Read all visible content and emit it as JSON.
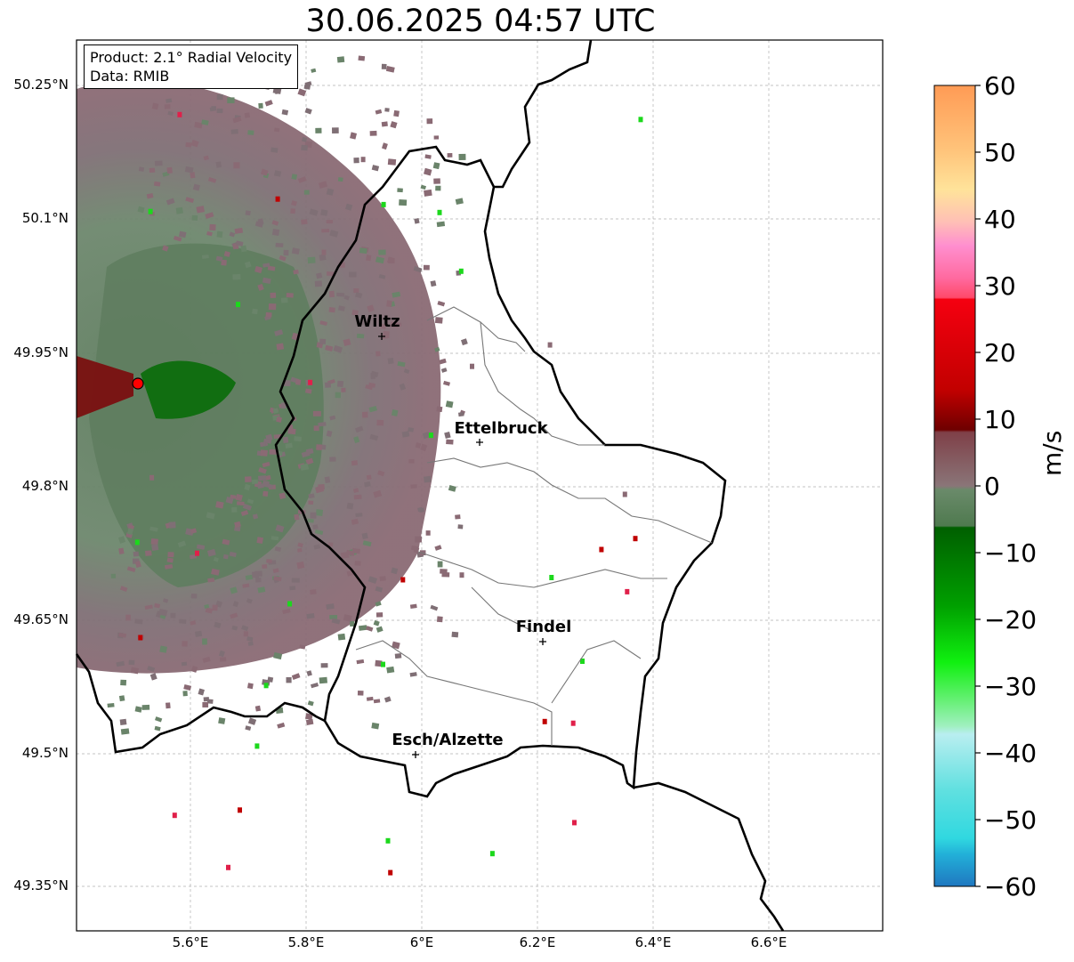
{
  "title": "30.06.2025 04:57 UTC",
  "info_box": {
    "line1": "Product: 2.1° Radial Velocity",
    "line2": "Data: RMIB"
  },
  "axes": {
    "lat_labels": [
      "50.25°N",
      "50.1°N",
      "49.95°N",
      "49.8°N",
      "49.65°N",
      "49.5°N",
      "49.35°N"
    ],
    "lon_labels": [
      "5.6°E",
      "5.8°E",
      "6°E",
      "6.2°E",
      "6.4°E",
      "6.6°E"
    ]
  },
  "cities": [
    {
      "name": "Wiltz"
    },
    {
      "name": "Ettelbruck"
    },
    {
      "name": "Findel"
    },
    {
      "name": "Esch/Alzette"
    }
  ],
  "colorbar": {
    "unit": "m/s",
    "ticks": [
      "60",
      "50",
      "40",
      "30",
      "20",
      "10",
      "0",
      "−10",
      "−20",
      "−30",
      "−40",
      "−50",
      "−60"
    ],
    "range": [
      -60,
      60
    ],
    "colors": {
      "pos_high": "#ff9b55",
      "pos_mid": "#ff5a7a",
      "pos_red": "#e0000f",
      "pos_dark": "#6e0000",
      "zero_pos": "#8a6a72",
      "zero_neg": "#6a846a",
      "neg_green": "#007a00",
      "neg_bright": "#1cf01c",
      "neg_cyan": "#38dce0",
      "neg_blue": "#1f77c0"
    }
  },
  "radar_site_color": "#ff0000"
}
